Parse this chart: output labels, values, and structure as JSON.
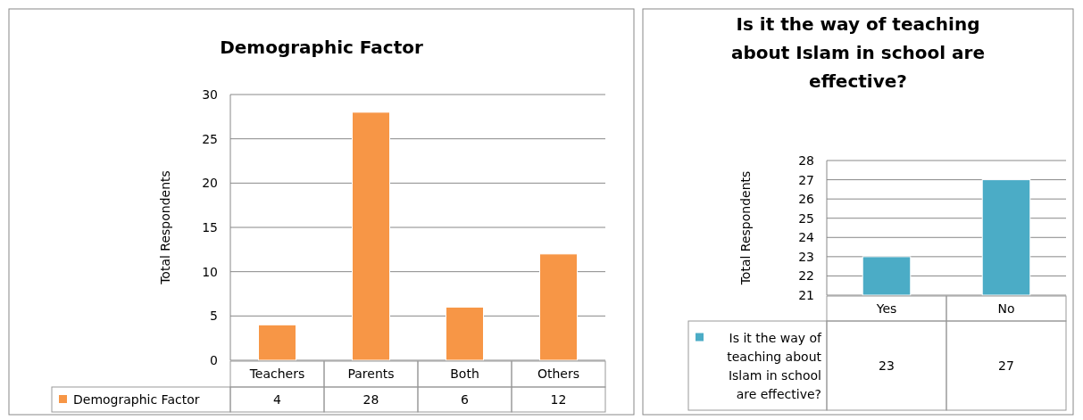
{
  "chart_data": [
    {
      "type": "bar",
      "title": "Demographic Factor",
      "ylabel": "Total Respondents",
      "categories": [
        "Teachers",
        "Parents",
        "Both",
        "Others"
      ],
      "series": [
        {
          "name": "Demographic Factor",
          "color": "#f79646",
          "values": [
            4,
            28,
            6,
            12
          ]
        }
      ],
      "ylim": [
        0,
        30
      ],
      "yticks": [
        0,
        5,
        10,
        15,
        20,
        25,
        30
      ],
      "grid": "y",
      "legend": "bottom",
      "data_labels": true
    },
    {
      "type": "bar",
      "title": "Is it the way of teaching about Islam in school are effective?",
      "ylabel": "Total Respondents",
      "categories": [
        "Yes",
        "No"
      ],
      "series": [
        {
          "name": "Is it the way of teaching about Islam in school are effective?",
          "color": "#4bacc6",
          "values": [
            23,
            27
          ]
        }
      ],
      "ylim": [
        21,
        28
      ],
      "yticks": [
        21,
        22,
        23,
        24,
        25,
        26,
        27,
        28
      ],
      "grid": "y",
      "legend": "bottom",
      "data_labels": true
    }
  ]
}
